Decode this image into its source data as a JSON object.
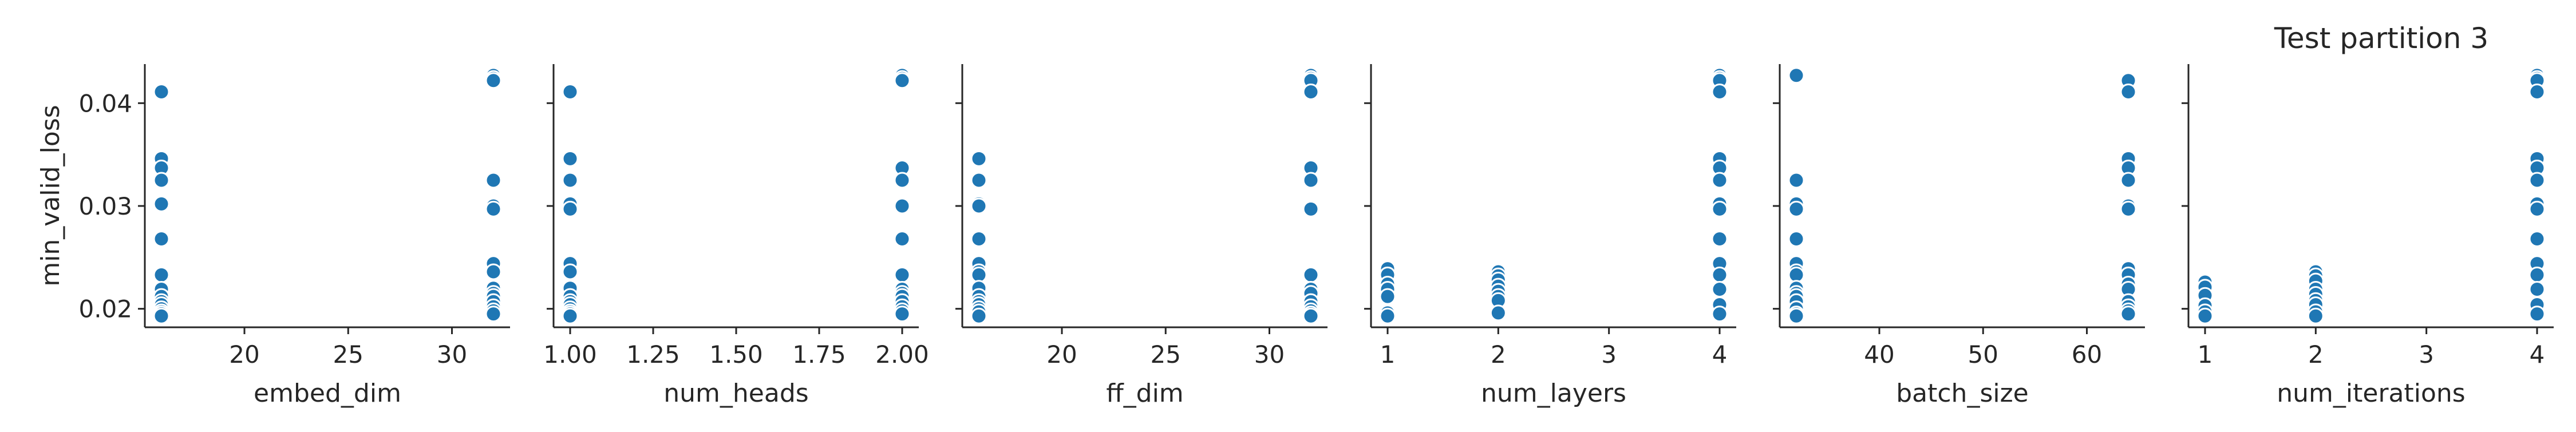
{
  "figure": {
    "title": "Test partition 3"
  },
  "colors": {
    "point_fill": "#1f77b4",
    "point_edge": "#ffffff",
    "axis": "#262626"
  },
  "chart_data": [
    {
      "type": "scatter",
      "xlabel": "embed_dim",
      "ylabel": "min_valid_loss",
      "xlim": [
        15.2,
        32.8
      ],
      "ylim": [
        0.0182,
        0.0438
      ],
      "xticks": [
        "20",
        "25",
        "30"
      ],
      "yticks": [
        "0.02",
        "0.03",
        "0.04"
      ],
      "grid": false,
      "x": [
        16,
        16,
        16,
        16,
        16,
        16,
        16,
        16,
        16,
        16,
        16,
        16,
        16,
        16,
        16,
        32,
        32,
        32,
        32,
        32,
        32,
        32,
        32,
        32,
        32,
        32,
        32,
        32,
        32,
        32
      ],
      "y": [
        0.0411,
        0.0346,
        0.0337,
        0.0325,
        0.0302,
        0.0268,
        0.0233,
        0.0219,
        0.0212,
        0.0207,
        0.0204,
        0.02,
        0.0197,
        0.0195,
        0.0193,
        0.0427,
        0.0424,
        0.0422,
        0.0325,
        0.03,
        0.0297,
        0.0244,
        0.0236,
        0.022,
        0.0215,
        0.0212,
        0.0207,
        0.0202,
        0.0198,
        0.0195
      ]
    },
    {
      "type": "scatter",
      "xlabel": "num_heads",
      "ylabel": "",
      "xlim": [
        0.95,
        2.05
      ],
      "ylim": [
        0.0182,
        0.0438
      ],
      "xticks": [
        "1.00",
        "1.25",
        "1.50",
        "1.75",
        "2.00"
      ],
      "yticks": [],
      "grid": false,
      "x": [
        1,
        1,
        1,
        1,
        1,
        1,
        1,
        1,
        1,
        1,
        1,
        1,
        1,
        1,
        1,
        2,
        2,
        2,
        2,
        2,
        2,
        2,
        2,
        2,
        2,
        2,
        2,
        2,
        2,
        2
      ],
      "y": [
        0.0411,
        0.0346,
        0.0325,
        0.0302,
        0.0297,
        0.0244,
        0.0236,
        0.022,
        0.0212,
        0.0207,
        0.0204,
        0.02,
        0.0197,
        0.0195,
        0.0193,
        0.0427,
        0.0424,
        0.0422,
        0.0337,
        0.0325,
        0.03,
        0.0268,
        0.0233,
        0.0219,
        0.0215,
        0.0212,
        0.0207,
        0.0202,
        0.0198,
        0.0195
      ]
    },
    {
      "type": "scatter",
      "xlabel": "ff_dim",
      "ylabel": "",
      "xlim": [
        15.2,
        32.8
      ],
      "ylim": [
        0.0182,
        0.0438
      ],
      "xticks": [
        "20",
        "25",
        "30"
      ],
      "yticks": [],
      "grid": false,
      "x": [
        16,
        16,
        16,
        16,
        16,
        16,
        16,
        16,
        16,
        16,
        16,
        16,
        16,
        16,
        16,
        32,
        32,
        32,
        32,
        32,
        32,
        32,
        32,
        32,
        32,
        32,
        32,
        32,
        32,
        32
      ],
      "y": [
        0.0346,
        0.0325,
        0.0302,
        0.03,
        0.0268,
        0.0244,
        0.0236,
        0.0233,
        0.022,
        0.0212,
        0.0207,
        0.0204,
        0.02,
        0.0197,
        0.0193,
        0.0427,
        0.0424,
        0.0422,
        0.0411,
        0.0337,
        0.0325,
        0.0297,
        0.0233,
        0.0219,
        0.0215,
        0.0207,
        0.0202,
        0.0198,
        0.0195,
        0.0193
      ]
    },
    {
      "type": "scatter",
      "xlabel": "num_layers",
      "ylabel": "",
      "xlim": [
        0.85,
        4.15
      ],
      "ylim": [
        0.0182,
        0.0438
      ],
      "xticks": [
        "1",
        "2",
        "3",
        "4"
      ],
      "yticks": [],
      "grid": false,
      "x": [
        1,
        1,
        1,
        1,
        1,
        1,
        1,
        2,
        2,
        2,
        2,
        2,
        2,
        2,
        2,
        4,
        4,
        4,
        4,
        4,
        4,
        4,
        4,
        4,
        4,
        4,
        4,
        4,
        4,
        4
      ],
      "y": [
        0.0239,
        0.0233,
        0.0224,
        0.0219,
        0.0212,
        0.0196,
        0.0193,
        0.0236,
        0.0232,
        0.0228,
        0.0222,
        0.0217,
        0.0212,
        0.0208,
        0.0196,
        0.0427,
        0.0424,
        0.0422,
        0.0411,
        0.0346,
        0.0337,
        0.0325,
        0.0302,
        0.0297,
        0.0268,
        0.0244,
        0.0233,
        0.0219,
        0.0204,
        0.0195
      ]
    },
    {
      "type": "scatter",
      "xlabel": "batch_size",
      "ylabel": "",
      "xlim": [
        30.4,
        65.6
      ],
      "ylim": [
        0.0182,
        0.0438
      ],
      "xticks": [
        "40",
        "50",
        "60"
      ],
      "yticks": [],
      "grid": false,
      "x": [
        32,
        32,
        32,
        32,
        32,
        32,
        32,
        32,
        32,
        32,
        32,
        32,
        32,
        32,
        32,
        64,
        64,
        64,
        64,
        64,
        64,
        64,
        64,
        64,
        64,
        64,
        64,
        64,
        64,
        64
      ],
      "y": [
        0.0427,
        0.0325,
        0.0302,
        0.0297,
        0.0268,
        0.0244,
        0.0236,
        0.0233,
        0.022,
        0.0215,
        0.0212,
        0.0207,
        0.02,
        0.0195,
        0.0193,
        0.0422,
        0.0411,
        0.0346,
        0.0337,
        0.0325,
        0.03,
        0.0297,
        0.0239,
        0.0233,
        0.0224,
        0.0219,
        0.0207,
        0.0202,
        0.0198,
        0.0195
      ]
    },
    {
      "type": "scatter",
      "xlabel": "num_iterations",
      "ylabel": "",
      "xlim": [
        0.85,
        4.15
      ],
      "ylim": [
        0.0182,
        0.0438
      ],
      "xticks": [
        "1",
        "2",
        "3",
        "4"
      ],
      "yticks": [],
      "grid": false,
      "x": [
        1,
        1,
        1,
        1,
        1,
        1,
        2,
        2,
        2,
        2,
        2,
        2,
        2,
        2,
        2,
        4,
        4,
        4,
        4,
        4,
        4,
        4,
        4,
        4,
        4,
        4,
        4,
        4,
        4,
        4
      ],
      "y": [
        0.0226,
        0.0221,
        0.0213,
        0.0203,
        0.0197,
        0.0193,
        0.0236,
        0.0232,
        0.0227,
        0.0219,
        0.0214,
        0.0208,
        0.0204,
        0.0197,
        0.0193,
        0.0427,
        0.0424,
        0.0422,
        0.0411,
        0.0346,
        0.0337,
        0.0325,
        0.0302,
        0.0297,
        0.0268,
        0.0244,
        0.0233,
        0.0219,
        0.0204,
        0.0195
      ]
    }
  ]
}
